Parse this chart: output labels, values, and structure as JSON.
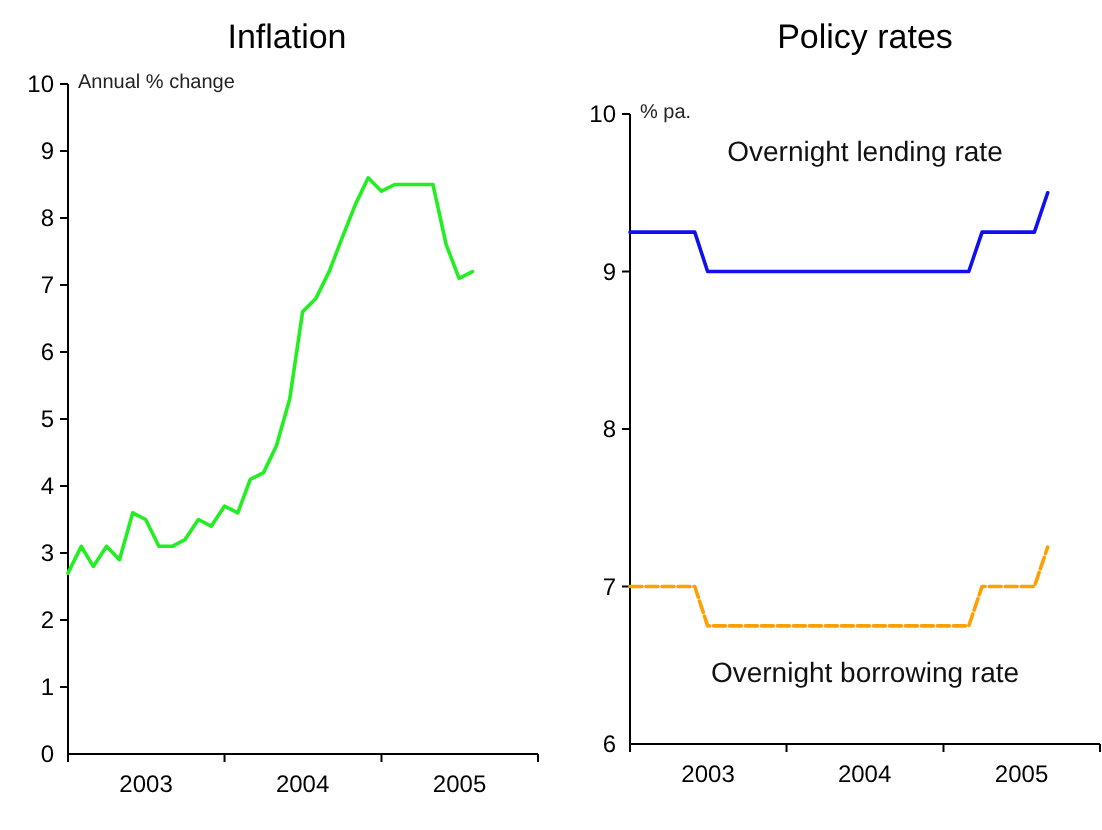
{
  "chart_data": [
    {
      "type": "line",
      "title": "Inflation",
      "ylabel": "Annual % change",
      "x": [
        "2003-01-01",
        "2003-02-01",
        "2003-03-01",
        "2003-04-01",
        "2003-05-01",
        "2003-06-01",
        "2003-07-01",
        "2003-08-01",
        "2003-09-01",
        "2003-10-01",
        "2003-11-01",
        "2003-12-01",
        "2004-01-01",
        "2004-02-01",
        "2004-03-01",
        "2004-04-01",
        "2004-05-01",
        "2004-06-01",
        "2004-07-01",
        "2004-08-01",
        "2004-09-01",
        "2004-10-01",
        "2004-11-01",
        "2004-12-01",
        "2005-01-01",
        "2005-02-01",
        "2005-03-01",
        "2005-04-01",
        "2005-05-01",
        "2005-06-01",
        "2005-07-01",
        "2005-08-01"
      ],
      "series": [
        {
          "color": "#22ee22",
          "values": [
            2.7,
            3.1,
            2.8,
            3.1,
            2.9,
            3.6,
            3.5,
            3.1,
            3.1,
            3.2,
            3.5,
            3.4,
            3.7,
            3.6,
            4.1,
            4.2,
            4.6,
            5.3,
            6.6,
            6.8,
            7.2,
            7.7,
            8.2,
            8.6,
            8.4,
            8.5,
            8.5,
            8.5,
            8.5,
            7.6,
            7.1,
            7.2
          ]
        }
      ],
      "xlim": [
        "2003-01-01",
        "2006-01-01"
      ],
      "xticks": [
        {
          "value": "2003-01-01",
          "label": null
        },
        {
          "value": "2003-07-02",
          "label": "2003"
        },
        {
          "value": "2004-01-01",
          "label": null
        },
        {
          "value": "2004-07-01",
          "label": "2004"
        },
        {
          "value": "2005-01-01",
          "label": null
        },
        {
          "value": "2005-07-02",
          "label": "2005"
        },
        {
          "value": "2006-01-01",
          "label": null
        }
      ],
      "ylim": [
        0,
        10
      ],
      "yticks": [
        0,
        1,
        2,
        3,
        4,
        5,
        6,
        7,
        8,
        9,
        10
      ],
      "grid": false,
      "legend": false
    },
    {
      "type": "line",
      "title": "Policy rates",
      "ylabel": "% pa.",
      "x": [
        "2003-01-01",
        "2003-06-01",
        "2003-07-01",
        "2005-03-01",
        "2005-04-01",
        "2005-08-01",
        "2005-09-01"
      ],
      "series": [
        {
          "name": "Overnight lending rate",
          "color": "#1010ee",
          "line_style": "solid",
          "values": [
            9.25,
            9.25,
            9.0,
            9.0,
            9.25,
            9.25,
            9.5
          ]
        },
        {
          "name": "Overnight borrowing rate",
          "color": "#ffa000",
          "line_style": "dashed",
          "values": [
            7.0,
            7.0,
            6.75,
            6.75,
            7.0,
            7.0,
            7.25
          ]
        }
      ],
      "xlim": [
        "2003-01-01",
        "2006-01-01"
      ],
      "xticks": [
        {
          "value": "2003-01-01",
          "label": null
        },
        {
          "value": "2003-07-02",
          "label": "2003"
        },
        {
          "value": "2004-01-01",
          "label": null
        },
        {
          "value": "2004-07-01",
          "label": "2004"
        },
        {
          "value": "2005-01-01",
          "label": null
        },
        {
          "value": "2005-07-02",
          "label": "2005"
        },
        {
          "value": "2006-01-01",
          "label": null
        }
      ],
      "ylim": [
        6,
        10
      ],
      "yticks": [
        6,
        7,
        8,
        9,
        10
      ],
      "grid": false,
      "legend": false
    }
  ]
}
